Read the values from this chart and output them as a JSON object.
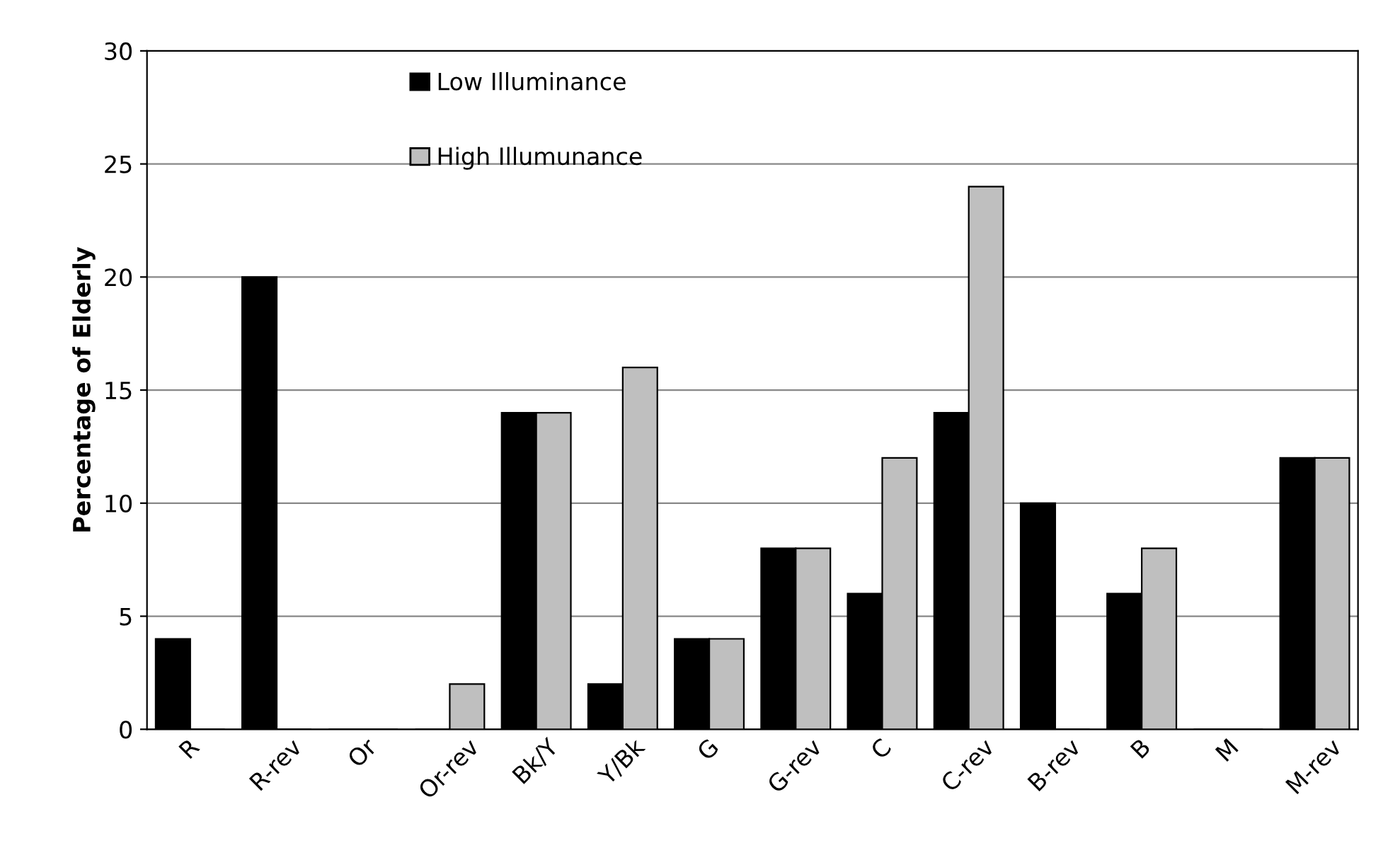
{
  "chart_data": {
    "type": "bar",
    "ylabel": "Percentage of Elderly",
    "categories": [
      "R",
      "R-rev",
      "Or",
      "Or-rev",
      "Bk/Y",
      "Y/Bk",
      "G",
      "G-rev",
      "C",
      "C-rev",
      "B-rev",
      "B",
      "M",
      "M-rev"
    ],
    "series": [
      {
        "name": "Low Illuminance",
        "color": "#000000",
        "values": [
          4,
          20,
          0,
          0,
          14,
          2,
          4,
          8,
          6,
          14,
          10,
          6,
          0,
          12
        ]
      },
      {
        "name": "High Illumunance",
        "color": "#bfbfbf",
        "values": [
          0,
          0,
          0,
          2,
          14,
          16,
          4,
          8,
          12,
          24,
          0,
          8,
          0,
          12
        ]
      }
    ],
    "ylim": [
      0,
      30
    ],
    "yticks": [
      0,
      5,
      10,
      15,
      20,
      25,
      30
    ],
    "grid": "y",
    "legend": "top left"
  }
}
